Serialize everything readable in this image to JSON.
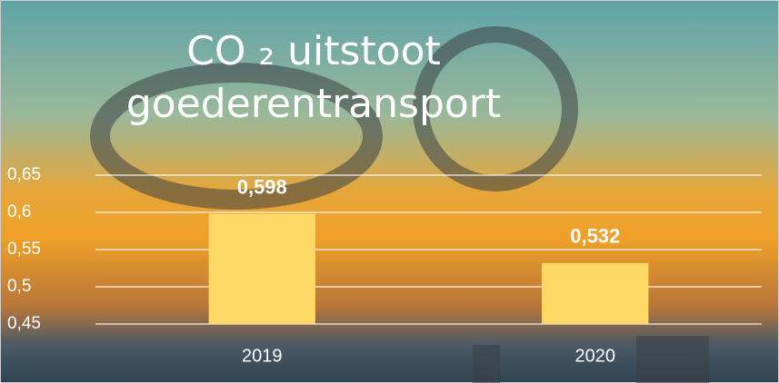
{
  "chart_data": {
    "type": "bar",
    "title": "CO ₂ uitstoot goederentransport",
    "categories": [
      "2019",
      "2020"
    ],
    "values": [
      0.598,
      0.532
    ],
    "value_labels": [
      "0,598",
      "0,532"
    ],
    "color": "#ffd966",
    "ylim": [
      0.45,
      0.65
    ],
    "yticks": [
      {
        "value": 0.45,
        "label": "0,45"
      },
      {
        "value": 0.5,
        "label": "0,5"
      },
      {
        "value": 0.55,
        "label": "0,55"
      },
      {
        "value": 0.6,
        "label": "0,6"
      },
      {
        "value": 0.65,
        "label": "0,65"
      }
    ],
    "grid": true
  }
}
